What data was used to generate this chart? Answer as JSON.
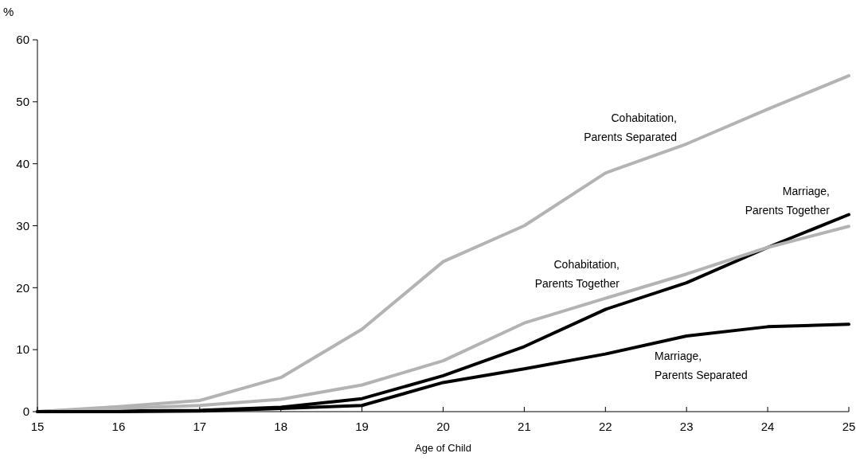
{
  "chart_data": {
    "type": "line",
    "ylabel": "%",
    "xlabel": "Age of Child",
    "x": [
      15,
      16,
      17,
      18,
      19,
      20,
      21,
      22,
      23,
      24,
      25
    ],
    "xlim": [
      15,
      25
    ],
    "xticks": [
      15,
      16,
      17,
      18,
      19,
      20,
      21,
      22,
      23,
      24,
      25
    ],
    "ylim": [
      0,
      60
    ],
    "yticks": [
      0,
      10,
      20,
      30,
      40,
      50,
      60
    ],
    "grid": false,
    "marker": "none",
    "line_style": "solid",
    "series": [
      {
        "name": "Cohabitation,\nParents Separated",
        "color": "#b3b3b3",
        "values": [
          0,
          0.8,
          1.8,
          5.5,
          13.3,
          24.2,
          30,
          38.5,
          43.2,
          48.8,
          54.2
        ]
      },
      {
        "name": "Marriage,\nParents Together",
        "color": "#000000",
        "values": [
          0,
          0.1,
          0.2,
          0.7,
          2.1,
          5.8,
          10.5,
          16.5,
          20.8,
          26.5,
          31.8
        ]
      },
      {
        "name": "Cohabitation,\nParents Together",
        "color": "#b3b3b3",
        "values": [
          0,
          0.5,
          1,
          2,
          4.3,
          8.2,
          14.3,
          18.3,
          22.2,
          26.5,
          29.9
        ]
      },
      {
        "name": "Marriage,\nParents Separated",
        "color": "#000000",
        "values": [
          0,
          0,
          0.1,
          0.5,
          1,
          4.7,
          6.9,
          9.3,
          12.2,
          13.7,
          14.1
        ]
      }
    ]
  }
}
